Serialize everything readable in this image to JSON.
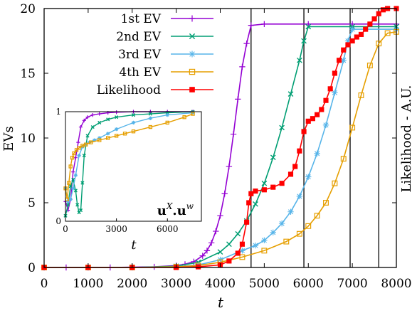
{
  "chart_data": {
    "type": "line",
    "xlabel": "t",
    "ylabel": "EVs",
    "y2label": "Likelihood - A.U.",
    "xlim": [
      0,
      8000
    ],
    "ylim": [
      0,
      20
    ],
    "xticks": [
      "0",
      "1000",
      "2000",
      "3000",
      "4000",
      "5000",
      "6000",
      "7000",
      "8000"
    ],
    "yticks": [
      "0",
      "5",
      "10",
      "15",
      "20"
    ],
    "legend_position": "top-left",
    "vlines": [
      4700,
      5900,
      6950,
      7600
    ],
    "series": [
      {
        "name": "1st EV",
        "color": "#9400d3",
        "marker": "plus",
        "x": [
          0,
          500,
          1000,
          1500,
          2000,
          2500,
          3000,
          3200,
          3400,
          3600,
          3700,
          3800,
          3900,
          4000,
          4100,
          4200,
          4300,
          4400,
          4500,
          4600,
          4700,
          5000,
          6000,
          7000,
          8000
        ],
        "y": [
          0,
          0,
          0,
          0,
          0.02,
          0.05,
          0.15,
          0.25,
          0.45,
          0.9,
          1.3,
          1.9,
          2.8,
          4.0,
          5.7,
          7.8,
          10.3,
          13.0,
          15.5,
          17.3,
          18.7,
          18.8,
          18.8,
          18.8,
          18.8
        ]
      },
      {
        "name": "2nd EV",
        "color": "#009e73",
        "marker": "x",
        "x": [
          0,
          1000,
          2000,
          3000,
          3500,
          4000,
          4200,
          4400,
          4600,
          4800,
          5000,
          5200,
          5400,
          5600,
          5800,
          5900,
          6000,
          7000,
          8000
        ],
        "y": [
          0,
          0,
          0,
          0.1,
          0.4,
          1.2,
          1.8,
          2.6,
          3.6,
          4.9,
          6.5,
          8.5,
          10.8,
          13.4,
          16.0,
          17.5,
          18.6,
          18.6,
          18.6
        ]
      },
      {
        "name": "3rd EV",
        "color": "#56b4e9",
        "marker": "star",
        "x": [
          0,
          1000,
          2000,
          3000,
          3500,
          4000,
          4500,
          4800,
          5000,
          5200,
          5400,
          5600,
          5800,
          6000,
          6200,
          6400,
          6600,
          6800,
          6900,
          7000,
          8000
        ],
        "y": [
          0,
          0,
          0,
          0.05,
          0.2,
          0.6,
          1.3,
          1.7,
          2.1,
          2.7,
          3.4,
          4.3,
          5.5,
          7.0,
          8.8,
          11.0,
          13.5,
          16.0,
          17.5,
          18.4,
          18.4
        ]
      },
      {
        "name": "4th EV",
        "color": "#e69f00",
        "marker": "square-open",
        "x": [
          0,
          1000,
          2000,
          3000,
          3500,
          4000,
          4500,
          5000,
          5500,
          5800,
          6000,
          6200,
          6400,
          6600,
          6800,
          7000,
          7200,
          7400,
          7600,
          7800,
          8000
        ],
        "y": [
          0,
          0,
          0,
          0.05,
          0.15,
          0.4,
          0.8,
          1.3,
          2.0,
          2.6,
          3.2,
          4.0,
          5.0,
          6.5,
          8.4,
          10.8,
          13.3,
          15.6,
          17.3,
          18.1,
          18.2
        ]
      },
      {
        "name": "Likelihood",
        "color": "#ff0000",
        "marker": "square-filled",
        "x": [
          0,
          1000,
          2000,
          3000,
          3500,
          4000,
          4200,
          4400,
          4500,
          4600,
          4650,
          4700,
          4800,
          5000,
          5200,
          5400,
          5600,
          5700,
          5800,
          5900,
          6000,
          6100,
          6200,
          6300,
          6400,
          6500,
          6600,
          6700,
          6800,
          6900,
          7000,
          7100,
          7200,
          7300,
          7400,
          7500,
          7600,
          7700,
          7800,
          8000
        ],
        "y": [
          0,
          0,
          0,
          0,
          0.05,
          0.2,
          0.5,
          1.1,
          1.8,
          3.5,
          5.0,
          5.7,
          5.9,
          6.0,
          6.2,
          6.5,
          7.2,
          7.8,
          9.0,
          10.5,
          11.3,
          11.5,
          11.8,
          12.2,
          12.9,
          13.8,
          15.0,
          16.0,
          16.8,
          17.2,
          17.5,
          17.8,
          18.0,
          18.4,
          18.8,
          19.2,
          19.6,
          19.9,
          20.0,
          20.0
        ]
      }
    ],
    "inset": {
      "xlim": [
        0,
        8000
      ],
      "ylim": [
        0,
        1
      ],
      "xticks": [
        "0",
        "3000",
        "6000"
      ],
      "yticks": [
        "0",
        "1"
      ],
      "xlabel": "t",
      "label_main": "u",
      "label_sup1": "X",
      "label_mid": ".u",
      "label_sup2": "w",
      "series": [
        {
          "name": "1st EV",
          "color": "#9400d3",
          "marker": "plus",
          "x": [
            0,
            150,
            300,
            450,
            600,
            750,
            900,
            1100,
            1300,
            1600,
            2000,
            2500,
            3000,
            4000,
            5000,
            6000,
            7500
          ],
          "y": [
            0.18,
            0.1,
            0.2,
            0.45,
            0.58,
            0.72,
            0.86,
            0.92,
            0.95,
            0.97,
            0.98,
            0.99,
            0.995,
            1.0,
            1.0,
            1.0,
            1.0
          ]
        },
        {
          "name": "2nd EV",
          "color": "#009e73",
          "marker": "x",
          "x": [
            0,
            150,
            300,
            450,
            600,
            700,
            800,
            900,
            1000,
            1100,
            1300,
            1600,
            2000,
            2500,
            3000,
            4000,
            5000,
            6000,
            7500
          ],
          "y": [
            0.05,
            0.15,
            0.32,
            0.38,
            0.28,
            0.15,
            0.08,
            0.1,
            0.35,
            0.6,
            0.78,
            0.86,
            0.9,
            0.93,
            0.95,
            0.97,
            0.98,
            0.99,
            1.0
          ]
        },
        {
          "name": "3rd EV",
          "color": "#56b4e9",
          "marker": "star",
          "x": [
            0,
            150,
            300,
            450,
            600,
            800,
            1000,
            1200,
            1400,
            1700,
            2000,
            2500,
            3000,
            4000,
            5000,
            6000,
            7500
          ],
          "y": [
            0.3,
            0.18,
            0.2,
            0.3,
            0.42,
            0.6,
            0.68,
            0.7,
            0.72,
            0.74,
            0.76,
            0.8,
            0.84,
            0.9,
            0.94,
            0.97,
            0.99
          ]
        },
        {
          "name": "4th EV",
          "color": "#e69f00",
          "marker": "square-open",
          "x": [
            0,
            100,
            200,
            300,
            400,
            500,
            650,
            800,
            1000,
            1200,
            1500,
            2000,
            2500,
            3000,
            3500,
            4000,
            5000,
            6000,
            7000,
            7500
          ],
          "y": [
            0.3,
            0.2,
            0.35,
            0.5,
            0.58,
            0.62,
            0.65,
            0.67,
            0.69,
            0.7,
            0.72,
            0.74,
            0.76,
            0.78,
            0.8,
            0.82,
            0.86,
            0.9,
            0.95,
            0.98
          ]
        }
      ]
    }
  }
}
